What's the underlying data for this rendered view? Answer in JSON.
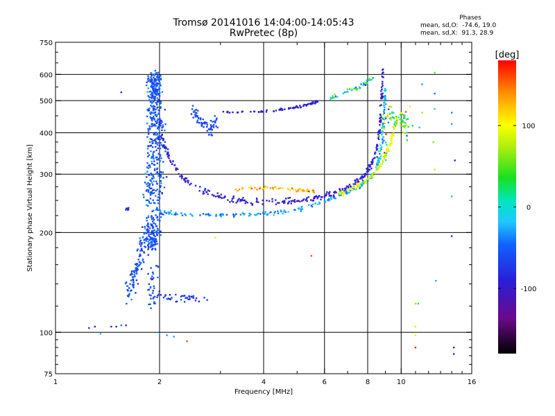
{
  "chart_data": {
    "type": "scatter",
    "title": "Tromsø 20141016 14:04:00-14:05:43",
    "subtitle": "RwPretec (8p)",
    "xlabel": "Frequency [MHz]",
    "ylabel": "Stationary phase Virtual Height [km]",
    "x_scale": "log",
    "y_scale": "log",
    "xlim": [
      1,
      16
    ],
    "ylim": [
      75,
      750
    ],
    "x_ticks": [
      1,
      2,
      4,
      6,
      8,
      10,
      16
    ],
    "x_tick_labels": [
      "1",
      "2",
      "4",
      "6",
      "8",
      "10",
      "16"
    ],
    "y_ticks": [
      75,
      100,
      200,
      300,
      400,
      500,
      600,
      750
    ],
    "y_tick_labels": [
      "75",
      "100",
      "200",
      "300",
      "400",
      "500",
      "600",
      "750"
    ],
    "grid": true,
    "phase_legend": {
      "header": "Phases",
      "line_o": "mean, sd,O:  -74.6, 19.0",
      "line_x": "mean, sd,X:  91.3, 28.9"
    },
    "colorbar": {
      "label": "[deg]",
      "range": [
        -180,
        180
      ],
      "ticks": [
        100,
        0,
        -100
      ],
      "tick_labels": [
        "100",
        "0",
        "-100"
      ]
    },
    "traces": [
      {
        "type": "spread",
        "points": [
          [
            1.86,
            240
          ],
          [
            1.88,
            300
          ],
          [
            1.9,
            400
          ],
          [
            1.92,
            520
          ],
          [
            1.94,
            600
          ],
          [
            1.96,
            520
          ],
          [
            1.98,
            400
          ],
          [
            2.0,
            300
          ],
          [
            1.95,
            200
          ],
          [
            1.85,
            180
          ]
        ],
        "jitter_f": 0.035,
        "jitter_h": 0.04,
        "phase": -55,
        "phase_sd": 22,
        "count": 520
      },
      {
        "type": "spread",
        "points": [
          [
            1.62,
            130
          ],
          [
            1.7,
            150
          ],
          [
            1.76,
            170
          ],
          [
            1.82,
            200
          ],
          [
            1.88,
            220
          ],
          [
            1.92,
            160
          ],
          [
            1.9,
            120
          ]
        ],
        "jitter_f": 0.03,
        "jitter_h": 0.05,
        "phase": -60,
        "phase_sd": 25,
        "count": 170
      },
      {
        "type": "curve",
        "points": [
          [
            1.97,
            232
          ],
          [
            2.3,
            228
          ],
          [
            2.8,
            226
          ],
          [
            3.3,
            226
          ],
          [
            3.8,
            227
          ],
          [
            4.4,
            230
          ],
          [
            5.0,
            235
          ],
          [
            5.6,
            242
          ],
          [
            6.2,
            252
          ],
          [
            6.8,
            262
          ],
          [
            7.4,
            272
          ],
          [
            8.0,
            287
          ],
          [
            8.4,
            305
          ],
          [
            8.7,
            340
          ],
          [
            8.85,
            400
          ],
          [
            8.95,
            480
          ],
          [
            9.0,
            560
          ]
        ],
        "jitter_h": 0.012,
        "phase": -30,
        "phase_sd": 25,
        "count": 260
      },
      {
        "type": "curve",
        "points": [
          [
            2.0,
            450
          ],
          [
            2.05,
            380
          ],
          [
            2.15,
            330
          ],
          [
            2.35,
            290
          ],
          [
            2.7,
            265
          ],
          [
            3.2,
            252
          ],
          [
            3.8,
            248
          ],
          [
            4.5,
            248
          ],
          [
            5.2,
            250
          ],
          [
            6.0,
            257
          ],
          [
            6.7,
            267
          ],
          [
            7.3,
            280
          ],
          [
            7.8,
            295
          ],
          [
            8.2,
            320
          ],
          [
            8.5,
            360
          ],
          [
            8.7,
            420
          ],
          [
            8.8,
            520
          ],
          [
            8.85,
            620
          ]
        ],
        "jitter_h": 0.018,
        "phase": -92,
        "phase_sd": 14,
        "count": 330
      },
      {
        "type": "curve",
        "points": [
          [
            3.3,
            270
          ],
          [
            3.8,
            272
          ],
          [
            4.3,
            273
          ],
          [
            4.8,
            270
          ],
          [
            5.3,
            268
          ],
          [
            5.7,
            266
          ]
        ],
        "jitter_h": 0.01,
        "phase": 125,
        "phase_sd": 45,
        "count": 55
      },
      {
        "type": "curve",
        "points": [
          [
            6.5,
            260
          ],
          [
            7.2,
            270
          ],
          [
            7.8,
            284
          ],
          [
            8.3,
            300
          ],
          [
            8.8,
            325
          ],
          [
            9.2,
            360
          ],
          [
            9.5,
            400
          ],
          [
            9.7,
            440
          ]
        ],
        "jitter_h": 0.015,
        "phase": 90,
        "phase_sd": 22,
        "count": 120
      },
      {
        "type": "curve",
        "points": [
          [
            3.0,
            460
          ],
          [
            3.6,
            462
          ],
          [
            4.2,
            466
          ],
          [
            4.8,
            475
          ],
          [
            5.3,
            485
          ],
          [
            5.8,
            500
          ]
        ],
        "jitter_h": 0.008,
        "phase": -92,
        "phase_sd": 10,
        "count": 70
      },
      {
        "type": "curve",
        "points": [
          [
            6.2,
            510
          ],
          [
            6.8,
            525
          ],
          [
            7.4,
            545
          ],
          [
            7.9,
            565
          ],
          [
            8.3,
            590
          ]
        ],
        "jitter_h": 0.012,
        "phase": 0,
        "phase_sd": 70,
        "count": 45
      },
      {
        "type": "spread",
        "points": [
          [
            2.5,
            470
          ],
          [
            2.6,
            440
          ],
          [
            2.7,
            420
          ],
          [
            2.8,
            400
          ],
          [
            2.9,
            440
          ]
        ],
        "jitter_f": 0.02,
        "jitter_h": 0.03,
        "phase": -60,
        "phase_sd": 18,
        "count": 70
      },
      {
        "type": "spread",
        "points": [
          [
            1.9,
            130
          ],
          [
            2.1,
            128
          ],
          [
            2.3,
            126
          ],
          [
            2.5,
            128
          ],
          [
            2.7,
            125
          ]
        ],
        "jitter_f": 0.02,
        "jitter_h": 0.02,
        "phase": -70,
        "phase_sd": 25,
        "count": 45
      },
      {
        "type": "spread",
        "points": [
          [
            8.7,
            330
          ],
          [
            9.0,
            420
          ],
          [
            9.2,
            470
          ],
          [
            9.7,
            430
          ],
          [
            10.1,
            460
          ],
          [
            10.3,
            400
          ]
        ],
        "jitter_f": 0.025,
        "jitter_h": 0.04,
        "phase": 40,
        "phase_sd": 95,
        "count": 90
      },
      {
        "type": "spread",
        "points": [
          [
            1.6,
            235
          ],
          [
            1.63,
            238
          ]
        ],
        "jitter_f": 0.01,
        "jitter_h": 0.01,
        "phase": -75,
        "phase_sd": 10,
        "count": 8
      },
      {
        "type": "points",
        "points": [
          [
            1.25,
            103
          ],
          [
            1.3,
            104
          ],
          [
            1.35,
            99
          ],
          [
            1.45,
            104
          ],
          [
            1.5,
            104
          ],
          [
            1.55,
            105
          ],
          [
            1.6,
            105
          ],
          [
            2.0,
            99
          ],
          [
            2.1,
            98
          ],
          [
            2.2,
            97
          ],
          [
            2.4,
            94
          ],
          [
            2.9,
            193
          ],
          [
            5.5,
            170
          ],
          [
            1.55,
            530
          ],
          [
            11.0,
            122
          ],
          [
            11.0,
            104
          ],
          [
            11.0,
            98
          ],
          [
            11.0,
            90
          ],
          [
            11.2,
            122
          ],
          [
            11.5,
            560
          ],
          [
            11.3,
            415
          ],
          [
            12.5,
            607
          ],
          [
            12.5,
            525
          ],
          [
            12.5,
            472
          ],
          [
            12.4,
            375
          ],
          [
            12.5,
            310
          ],
          [
            12.6,
            143
          ],
          [
            14.0,
            460
          ],
          [
            14.0,
            425
          ],
          [
            14.0,
            257
          ],
          [
            14.0,
            195
          ],
          [
            14.2,
            90
          ],
          [
            14.2,
            86
          ],
          [
            14.3,
            330
          ],
          [
            10.4,
            380
          ],
          [
            10.6,
            480
          ],
          [
            10.8,
            420
          ],
          [
            11.5,
            460
          ]
        ],
        "phases": [
          -120,
          -110,
          -20,
          -100,
          -110,
          -40,
          -100,
          -20,
          -30,
          -30,
          160,
          90,
          160,
          -110,
          70,
          90,
          90,
          170,
          40,
          -30,
          -20,
          50,
          -40,
          -10,
          60,
          80,
          -30,
          -40,
          -30,
          30,
          -110,
          -100,
          -130,
          -120,
          40,
          90,
          20,
          70
        ]
      }
    ]
  }
}
